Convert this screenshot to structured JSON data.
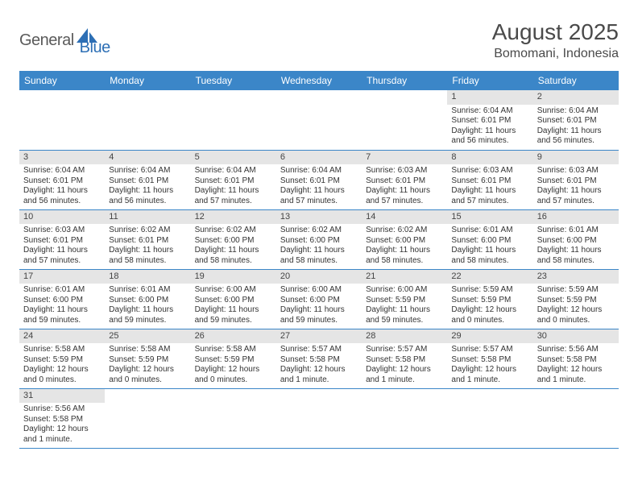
{
  "logo": {
    "text1": "General",
    "text2": "Blue"
  },
  "title": "August 2025",
  "location": "Bomomani, Indonesia",
  "colors": {
    "header_bg": "#3b86c8",
    "header_text": "#ffffff",
    "daynum_bg": "#e5e5e5",
    "cell_border": "#3b86c8",
    "text": "#333333"
  },
  "weekdays": [
    "Sunday",
    "Monday",
    "Tuesday",
    "Wednesday",
    "Thursday",
    "Friday",
    "Saturday"
  ],
  "weeks": [
    [
      null,
      null,
      null,
      null,
      null,
      {
        "n": "1",
        "sr": "6:04 AM",
        "ss": "6:01 PM",
        "dl": "11 hours and 56 minutes."
      },
      {
        "n": "2",
        "sr": "6:04 AM",
        "ss": "6:01 PM",
        "dl": "11 hours and 56 minutes."
      }
    ],
    [
      {
        "n": "3",
        "sr": "6:04 AM",
        "ss": "6:01 PM",
        "dl": "11 hours and 56 minutes."
      },
      {
        "n": "4",
        "sr": "6:04 AM",
        "ss": "6:01 PM",
        "dl": "11 hours and 56 minutes."
      },
      {
        "n": "5",
        "sr": "6:04 AM",
        "ss": "6:01 PM",
        "dl": "11 hours and 57 minutes."
      },
      {
        "n": "6",
        "sr": "6:04 AM",
        "ss": "6:01 PM",
        "dl": "11 hours and 57 minutes."
      },
      {
        "n": "7",
        "sr": "6:03 AM",
        "ss": "6:01 PM",
        "dl": "11 hours and 57 minutes."
      },
      {
        "n": "8",
        "sr": "6:03 AM",
        "ss": "6:01 PM",
        "dl": "11 hours and 57 minutes."
      },
      {
        "n": "9",
        "sr": "6:03 AM",
        "ss": "6:01 PM",
        "dl": "11 hours and 57 minutes."
      }
    ],
    [
      {
        "n": "10",
        "sr": "6:03 AM",
        "ss": "6:01 PM",
        "dl": "11 hours and 57 minutes."
      },
      {
        "n": "11",
        "sr": "6:02 AM",
        "ss": "6:01 PM",
        "dl": "11 hours and 58 minutes."
      },
      {
        "n": "12",
        "sr": "6:02 AM",
        "ss": "6:00 PM",
        "dl": "11 hours and 58 minutes."
      },
      {
        "n": "13",
        "sr": "6:02 AM",
        "ss": "6:00 PM",
        "dl": "11 hours and 58 minutes."
      },
      {
        "n": "14",
        "sr": "6:02 AM",
        "ss": "6:00 PM",
        "dl": "11 hours and 58 minutes."
      },
      {
        "n": "15",
        "sr": "6:01 AM",
        "ss": "6:00 PM",
        "dl": "11 hours and 58 minutes."
      },
      {
        "n": "16",
        "sr": "6:01 AM",
        "ss": "6:00 PM",
        "dl": "11 hours and 58 minutes."
      }
    ],
    [
      {
        "n": "17",
        "sr": "6:01 AM",
        "ss": "6:00 PM",
        "dl": "11 hours and 59 minutes."
      },
      {
        "n": "18",
        "sr": "6:01 AM",
        "ss": "6:00 PM",
        "dl": "11 hours and 59 minutes."
      },
      {
        "n": "19",
        "sr": "6:00 AM",
        "ss": "6:00 PM",
        "dl": "11 hours and 59 minutes."
      },
      {
        "n": "20",
        "sr": "6:00 AM",
        "ss": "6:00 PM",
        "dl": "11 hours and 59 minutes."
      },
      {
        "n": "21",
        "sr": "6:00 AM",
        "ss": "5:59 PM",
        "dl": "11 hours and 59 minutes."
      },
      {
        "n": "22",
        "sr": "5:59 AM",
        "ss": "5:59 PM",
        "dl": "12 hours and 0 minutes."
      },
      {
        "n": "23",
        "sr": "5:59 AM",
        "ss": "5:59 PM",
        "dl": "12 hours and 0 minutes."
      }
    ],
    [
      {
        "n": "24",
        "sr": "5:58 AM",
        "ss": "5:59 PM",
        "dl": "12 hours and 0 minutes."
      },
      {
        "n": "25",
        "sr": "5:58 AM",
        "ss": "5:59 PM",
        "dl": "12 hours and 0 minutes."
      },
      {
        "n": "26",
        "sr": "5:58 AM",
        "ss": "5:59 PM",
        "dl": "12 hours and 0 minutes."
      },
      {
        "n": "27",
        "sr": "5:57 AM",
        "ss": "5:58 PM",
        "dl": "12 hours and 1 minute."
      },
      {
        "n": "28",
        "sr": "5:57 AM",
        "ss": "5:58 PM",
        "dl": "12 hours and 1 minute."
      },
      {
        "n": "29",
        "sr": "5:57 AM",
        "ss": "5:58 PM",
        "dl": "12 hours and 1 minute."
      },
      {
        "n": "30",
        "sr": "5:56 AM",
        "ss": "5:58 PM",
        "dl": "12 hours and 1 minute."
      }
    ],
    [
      {
        "n": "31",
        "sr": "5:56 AM",
        "ss": "5:58 PM",
        "dl": "12 hours and 1 minute."
      },
      null,
      null,
      null,
      null,
      null,
      null
    ]
  ],
  "labels": {
    "sunrise": "Sunrise:",
    "sunset": "Sunset:",
    "daylight": "Daylight:"
  }
}
